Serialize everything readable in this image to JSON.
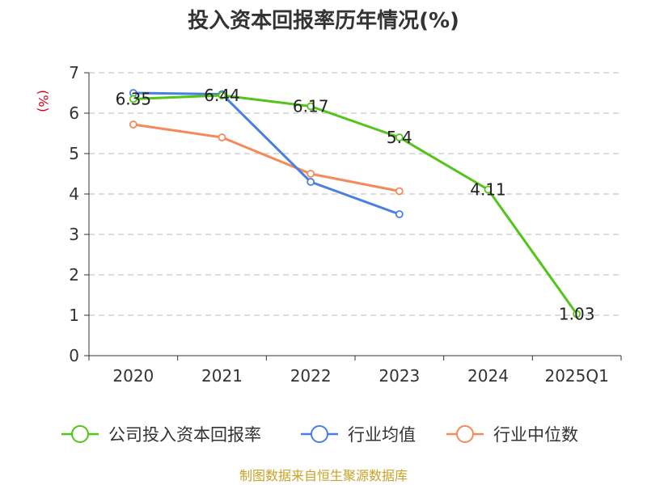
{
  "chart_data": {
    "type": "line",
    "title": "投入资本回报率历年情况(%)",
    "ylabel": "(%)",
    "ylim": [
      0,
      7
    ],
    "yticks": [
      0,
      1,
      2,
      3,
      4,
      5,
      6,
      7
    ],
    "categories": [
      "2020",
      "2021",
      "2022",
      "2023",
      "2024",
      "2025Q1"
    ],
    "grid": true,
    "legend_position": "bottom",
    "series": [
      {
        "name": "公司投入资本回报率",
        "color": "#52c41a",
        "values": [
          6.35,
          6.44,
          6.17,
          5.4,
          4.11,
          1.03
        ],
        "labels": [
          "6.35",
          "6.44",
          "6.17",
          "5.4",
          "4.11",
          "1.03"
        ]
      },
      {
        "name": "行业均值",
        "color": "#4a7fe0",
        "values": [
          6.5,
          6.47,
          4.3,
          3.5,
          null,
          null
        ]
      },
      {
        "name": "行业中位数",
        "color": "#f5895a",
        "values": [
          5.72,
          5.4,
          4.5,
          4.07,
          null,
          null
        ]
      }
    ]
  },
  "source_text": "制图数据来自恒生聚源数据库"
}
